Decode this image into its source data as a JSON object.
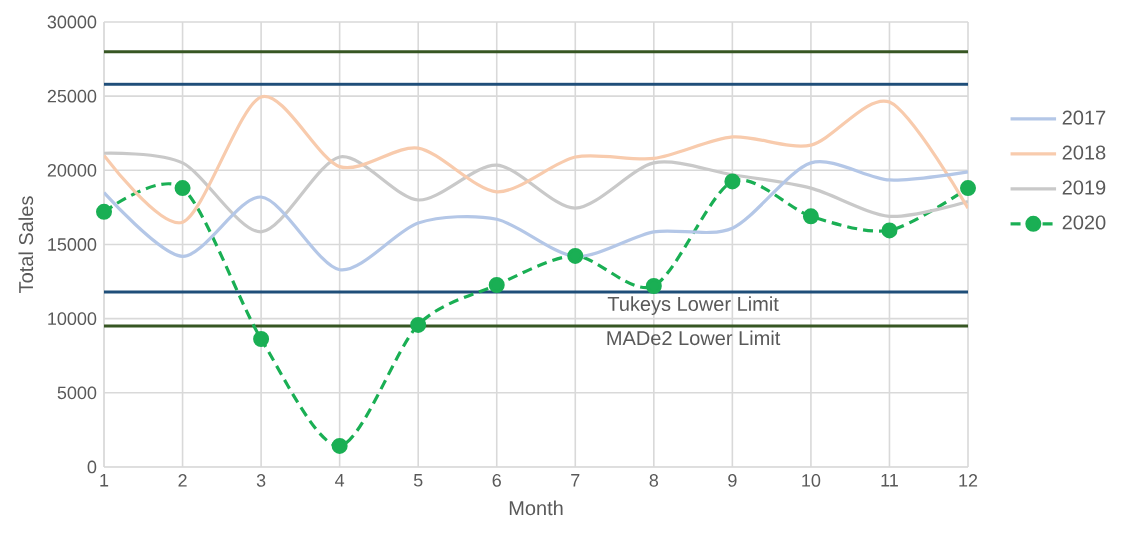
{
  "chart_data": {
    "type": "line",
    "xlabel": "Month",
    "ylabel": "Total Sales",
    "x": [
      1,
      2,
      3,
      4,
      5,
      6,
      7,
      8,
      9,
      10,
      11,
      12
    ],
    "xlim": [
      1,
      12
    ],
    "xticks": [
      1,
      2,
      3,
      4,
      5,
      6,
      7,
      8,
      9,
      10,
      11,
      12
    ],
    "ylim": [
      0,
      30000
    ],
    "yticks": [
      0,
      5000,
      10000,
      15000,
      20000,
      25000,
      30000
    ],
    "grid": true,
    "legend": "right",
    "series": [
      {
        "name": "2017",
        "color": "#b4c7e7",
        "marker": "none",
        "line_style": "solid",
        "values": [
          18500,
          14200,
          18200,
          13300,
          16450,
          16700,
          14200,
          15850,
          16100,
          20500,
          19350,
          19900
        ]
      },
      {
        "name": "2018",
        "color": "#f8cbad",
        "marker": "none",
        "line_style": "solid",
        "values": [
          21000,
          16500,
          24950,
          20250,
          21500,
          18550,
          20900,
          20800,
          22250,
          21700,
          24600,
          17450
        ]
      },
      {
        "name": "2019",
        "color": "#c9c9c9",
        "marker": "none",
        "line_style": "solid",
        "values": [
          21150,
          20500,
          15850,
          20900,
          18000,
          20350,
          17450,
          20500,
          19700,
          18800,
          16900,
          17900
        ]
      },
      {
        "name": "2020",
        "color": "#1aaf54",
        "marker": "circle",
        "line_style": "dashed",
        "values": [
          17200,
          18800,
          8630,
          1420,
          9580,
          12270,
          14230,
          12200,
          19250,
          16900,
          15950,
          18800
        ]
      }
    ],
    "ref_lines": [
      {
        "axis": "y",
        "value": 28000,
        "color": "#375623"
      },
      {
        "axis": "y",
        "value": 25800,
        "color": "#1f4e79"
      },
      {
        "axis": "y",
        "value": 11800,
        "color": "#1f4e79",
        "label": "Tukeys Lower Limit"
      },
      {
        "axis": "y",
        "value": 9500,
        "color": "#375623",
        "label": "MADe2 Lower Limit"
      }
    ]
  }
}
